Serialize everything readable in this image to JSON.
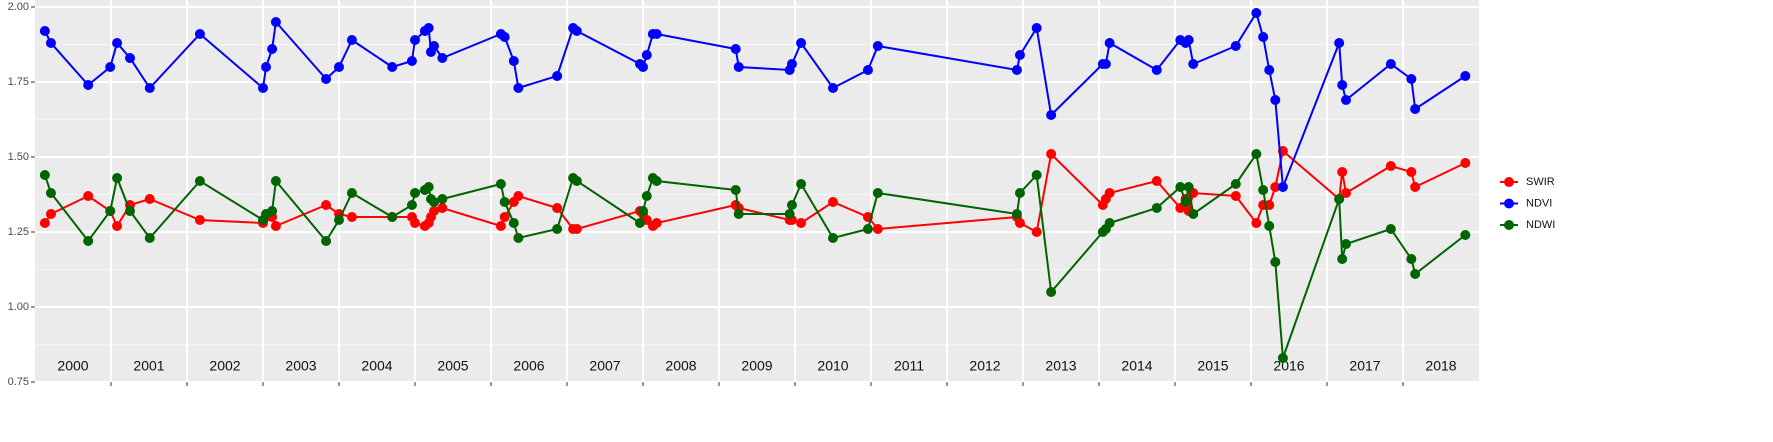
{
  "chart_data": {
    "type": "line",
    "x": [
      2000.13,
      2000.21,
      2000.7,
      2000.99,
      2001.08,
      2001.25,
      2001.51,
      2002.17,
      2003.0,
      2003.04,
      2003.12,
      2003.17,
      2003.83,
      2004.0,
      2004.17,
      2004.7,
      2004.96,
      2005.0,
      2005.13,
      2005.18,
      2005.21,
      2005.25,
      2005.36,
      2006.13,
      2006.18,
      2006.3,
      2006.36,
      2006.87,
      2007.08,
      2007.13,
      2007.96,
      2008.0,
      2008.05,
      2008.13,
      2008.18,
      2009.22,
      2009.26,
      2009.93,
      2009.96,
      2010.08,
      2010.5,
      2010.96,
      2011.09,
      2012.92,
      2012.96,
      2013.18,
      2013.37,
      2014.05,
      2014.09,
      2014.14,
      2014.76,
      2015.07,
      2015.14,
      2015.18,
      2015.24,
      2015.8,
      2016.07,
      2016.16,
      2016.24,
      2016.32,
      2016.42,
      2017.16,
      2017.2,
      2017.25,
      2017.84,
      2018.11,
      2018.16,
      2018.82
    ],
    "series": [
      {
        "name": "SWIR",
        "color": "#ff0000",
        "values": [
          1.28,
          1.31,
          1.37,
          1.32,
          1.27,
          1.34,
          1.36,
          1.29,
          1.28,
          1.3,
          1.3,
          1.27,
          1.34,
          1.31,
          1.3,
          1.3,
          1.3,
          1.28,
          1.27,
          1.28,
          1.3,
          1.32,
          1.33,
          1.27,
          1.3,
          1.35,
          1.37,
          1.33,
          1.26,
          1.26,
          1.32,
          1.31,
          1.29,
          1.27,
          1.28,
          1.34,
          1.33,
          1.29,
          1.29,
          1.28,
          1.35,
          1.3,
          1.26,
          1.3,
          1.28,
          1.25,
          1.51,
          1.34,
          1.36,
          1.38,
          1.42,
          1.33,
          1.36,
          1.32,
          1.38,
          1.37,
          1.28,
          1.34,
          1.34,
          1.4,
          1.52,
          1.36,
          1.45,
          1.38,
          1.47,
          1.45,
          1.4,
          1.48
        ]
      },
      {
        "name": "NDVI",
        "color": "#0000ff",
        "values": [
          1.92,
          1.88,
          1.74,
          1.8,
          1.88,
          1.83,
          1.73,
          1.91,
          1.73,
          1.8,
          1.86,
          1.95,
          1.76,
          1.8,
          1.89,
          1.8,
          1.82,
          1.89,
          1.92,
          1.93,
          1.85,
          1.87,
          1.83,
          1.91,
          1.9,
          1.82,
          1.73,
          1.77,
          1.93,
          1.92,
          1.81,
          1.8,
          1.84,
          1.91,
          1.91,
          1.86,
          1.8,
          1.79,
          1.81,
          1.88,
          1.73,
          1.79,
          1.87,
          1.79,
          1.84,
          1.93,
          1.64,
          1.81,
          1.81,
          1.88,
          1.79,
          1.89,
          1.88,
          1.89,
          1.81,
          1.87,
          1.98,
          1.9,
          1.79,
          1.69,
          1.4,
          1.88,
          1.74,
          1.69,
          1.81,
          1.76,
          1.66,
          1.77
        ]
      },
      {
        "name": "NDWI",
        "color": "#006400",
        "values": [
          1.44,
          1.38,
          1.22,
          1.32,
          1.43,
          1.32,
          1.23,
          1.42,
          1.29,
          1.31,
          1.32,
          1.42,
          1.22,
          1.29,
          1.38,
          1.3,
          1.34,
          1.38,
          1.39,
          1.4,
          1.36,
          1.35,
          1.36,
          1.41,
          1.35,
          1.28,
          1.23,
          1.26,
          1.43,
          1.42,
          1.28,
          1.32,
          1.37,
          1.43,
          1.42,
          1.39,
          1.31,
          1.31,
          1.34,
          1.41,
          1.23,
          1.26,
          1.38,
          1.31,
          1.38,
          1.44,
          1.05,
          1.25,
          1.26,
          1.28,
          1.33,
          1.4,
          1.35,
          1.4,
          1.31,
          1.41,
          1.51,
          1.39,
          1.27,
          1.15,
          0.83,
          1.36,
          1.16,
          1.21,
          1.26,
          1.16,
          1.11,
          1.24
        ]
      }
    ],
    "xlim": [
      2000,
      2019
    ],
    "xticks": [
      2001,
      2002,
      2003,
      2004,
      2005,
      2006,
      2007,
      2008,
      2009,
      2010,
      2011,
      2012,
      2013,
      2014,
      2015,
      2016,
      2017,
      2018
    ],
    "year_labels": [
      {
        "value": 2000.5,
        "label": "2000"
      },
      {
        "value": 2001.5,
        "label": "2001"
      },
      {
        "value": 2002.5,
        "label": "2002"
      },
      {
        "value": 2003.5,
        "label": "2003"
      },
      {
        "value": 2004.5,
        "label": "2004"
      },
      {
        "value": 2005.5,
        "label": "2005"
      },
      {
        "value": 2006.5,
        "label": "2006"
      },
      {
        "value": 2007.5,
        "label": "2007"
      },
      {
        "value": 2008.5,
        "label": "2008"
      },
      {
        "value": 2009.5,
        "label": "2009"
      },
      {
        "value": 2010.5,
        "label": "2010"
      },
      {
        "value": 2011.5,
        "label": "2011"
      },
      {
        "value": 2012.5,
        "label": "2012"
      },
      {
        "value": 2013.5,
        "label": "2013"
      },
      {
        "value": 2014.5,
        "label": "2014"
      },
      {
        "value": 2015.5,
        "label": "2015"
      },
      {
        "value": 2016.5,
        "label": "2016"
      },
      {
        "value": 2017.5,
        "label": "2017"
      },
      {
        "value": 2018.5,
        "label": "2018"
      }
    ],
    "ylim": [
      0.75,
      2.0
    ],
    "yticks": [
      {
        "value": 0.75,
        "label": "0.75"
      },
      {
        "value": 1.0,
        "label": "1.00"
      },
      {
        "value": 1.25,
        "label": "1.25"
      },
      {
        "value": 1.5,
        "label": "1.50"
      },
      {
        "value": 1.75,
        "label": "1.75"
      },
      {
        "value": 2.0,
        "label": "2.00"
      }
    ],
    "grid": true
  }
}
